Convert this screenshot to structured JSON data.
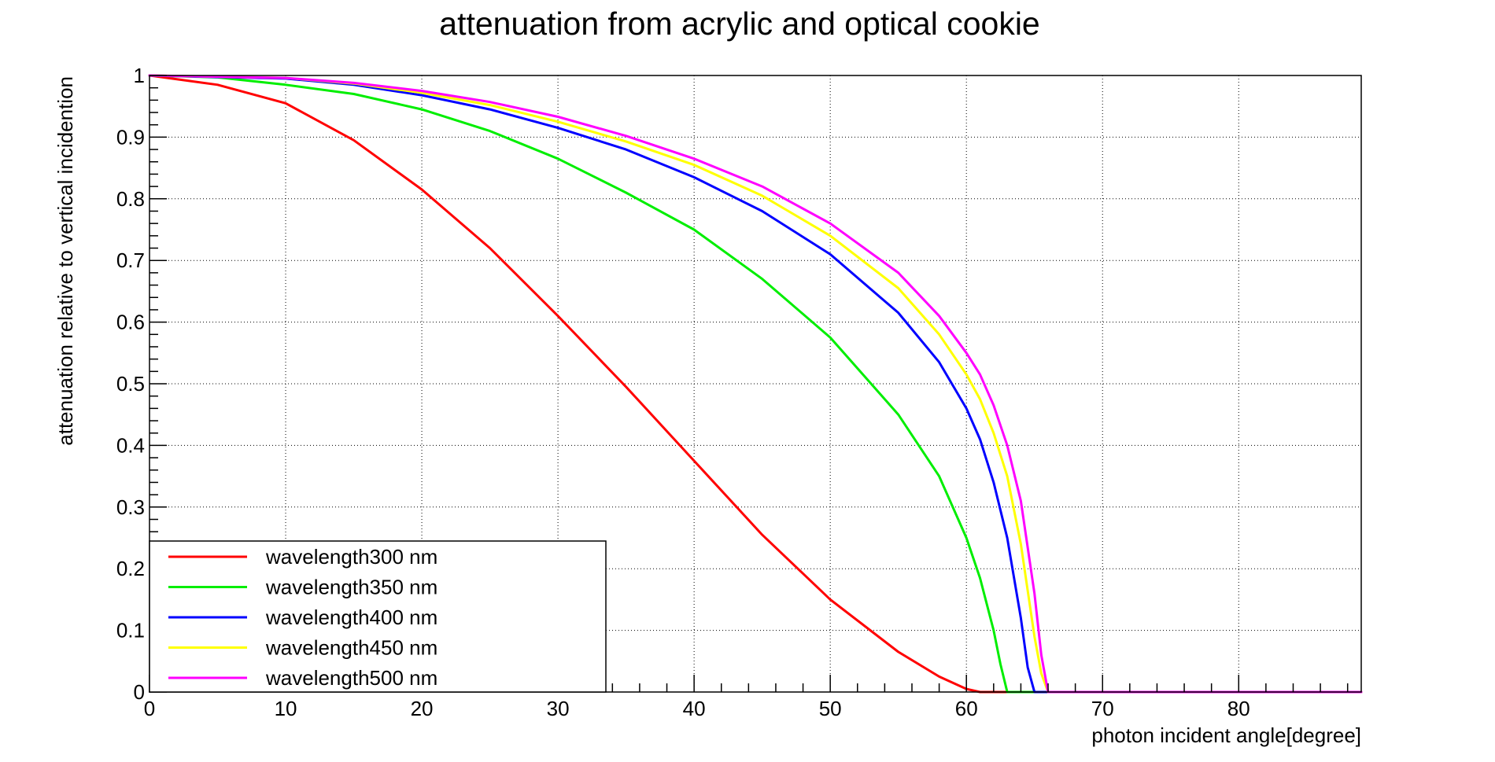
{
  "chart_data": {
    "type": "line",
    "title": "attenuation from acrylic and optical cookie",
    "xlabel": "photon incident angle[degree]",
    "ylabel": "attenuation relative to vertical incidention",
    "xlim": [
      0,
      89
    ],
    "ylim": [
      0,
      1
    ],
    "x_ticks": [
      0,
      10,
      20,
      30,
      40,
      50,
      60,
      70,
      80
    ],
    "x_tick_labels": [
      "0",
      "10",
      "20",
      "30",
      "40",
      "50",
      "60",
      "70",
      "80"
    ],
    "y_ticks": [
      0,
      0.1,
      0.2,
      0.3,
      0.4,
      0.5,
      0.6,
      0.7,
      0.8,
      0.9,
      1
    ],
    "y_tick_labels": [
      "0",
      "0.1",
      "0.2",
      "0.3",
      "0.4",
      "0.5",
      "0.6",
      "0.7",
      "0.8",
      "0.9",
      "1"
    ],
    "grid": true,
    "legend_position": "bottom-left",
    "series": [
      {
        "name": "wavelength300 nm",
        "color": "#ff0000",
        "x": [
          0,
          5,
          10,
          15,
          20,
          25,
          30,
          35,
          40,
          45,
          50,
          55,
          58,
          60,
          61,
          62,
          89
        ],
        "y": [
          1.0,
          0.985,
          0.955,
          0.895,
          0.815,
          0.72,
          0.61,
          0.495,
          0.375,
          0.255,
          0.15,
          0.065,
          0.025,
          0.005,
          0.0,
          0.0,
          0.0
        ]
      },
      {
        "name": "wavelength350 nm",
        "color": "#00ee00",
        "x": [
          0,
          5,
          10,
          15,
          20,
          25,
          30,
          35,
          40,
          45,
          50,
          55,
          58,
          60,
          61,
          62,
          62.5,
          63,
          89
        ],
        "y": [
          1.0,
          0.997,
          0.985,
          0.97,
          0.945,
          0.91,
          0.865,
          0.81,
          0.75,
          0.67,
          0.575,
          0.45,
          0.35,
          0.25,
          0.185,
          0.1,
          0.045,
          0.0,
          0.0
        ]
      },
      {
        "name": "wavelength400 nm",
        "color": "#0000ff",
        "x": [
          0,
          10,
          15,
          20,
          25,
          30,
          35,
          40,
          45,
          50,
          55,
          58,
          60,
          61,
          62,
          63,
          64,
          64.5,
          65,
          89
        ],
        "y": [
          1.0,
          0.995,
          0.985,
          0.968,
          0.945,
          0.915,
          0.88,
          0.835,
          0.78,
          0.71,
          0.615,
          0.535,
          0.46,
          0.41,
          0.34,
          0.25,
          0.12,
          0.04,
          0.0,
          0.0
        ]
      },
      {
        "name": "wavelength450 nm",
        "color": "#ffff00",
        "x": [
          0,
          10,
          15,
          20,
          25,
          30,
          35,
          40,
          45,
          50,
          55,
          58,
          60,
          61,
          62,
          63,
          64,
          65,
          65.5,
          66,
          89
        ],
        "y": [
          1.0,
          0.996,
          0.987,
          0.972,
          0.952,
          0.925,
          0.893,
          0.855,
          0.805,
          0.74,
          0.655,
          0.58,
          0.515,
          0.475,
          0.42,
          0.35,
          0.24,
          0.09,
          0.03,
          0.0,
          0.0
        ]
      },
      {
        "name": "wavelength500 nm",
        "color": "#ff00ff",
        "x": [
          0,
          10,
          15,
          20,
          25,
          30,
          35,
          40,
          45,
          50,
          55,
          58,
          60,
          61,
          62,
          63,
          64,
          65,
          65.5,
          66,
          89
        ],
        "y": [
          1.0,
          0.996,
          0.988,
          0.975,
          0.957,
          0.933,
          0.902,
          0.865,
          0.82,
          0.76,
          0.68,
          0.61,
          0.55,
          0.515,
          0.465,
          0.4,
          0.31,
          0.16,
          0.06,
          0.0,
          0.0
        ]
      }
    ]
  }
}
